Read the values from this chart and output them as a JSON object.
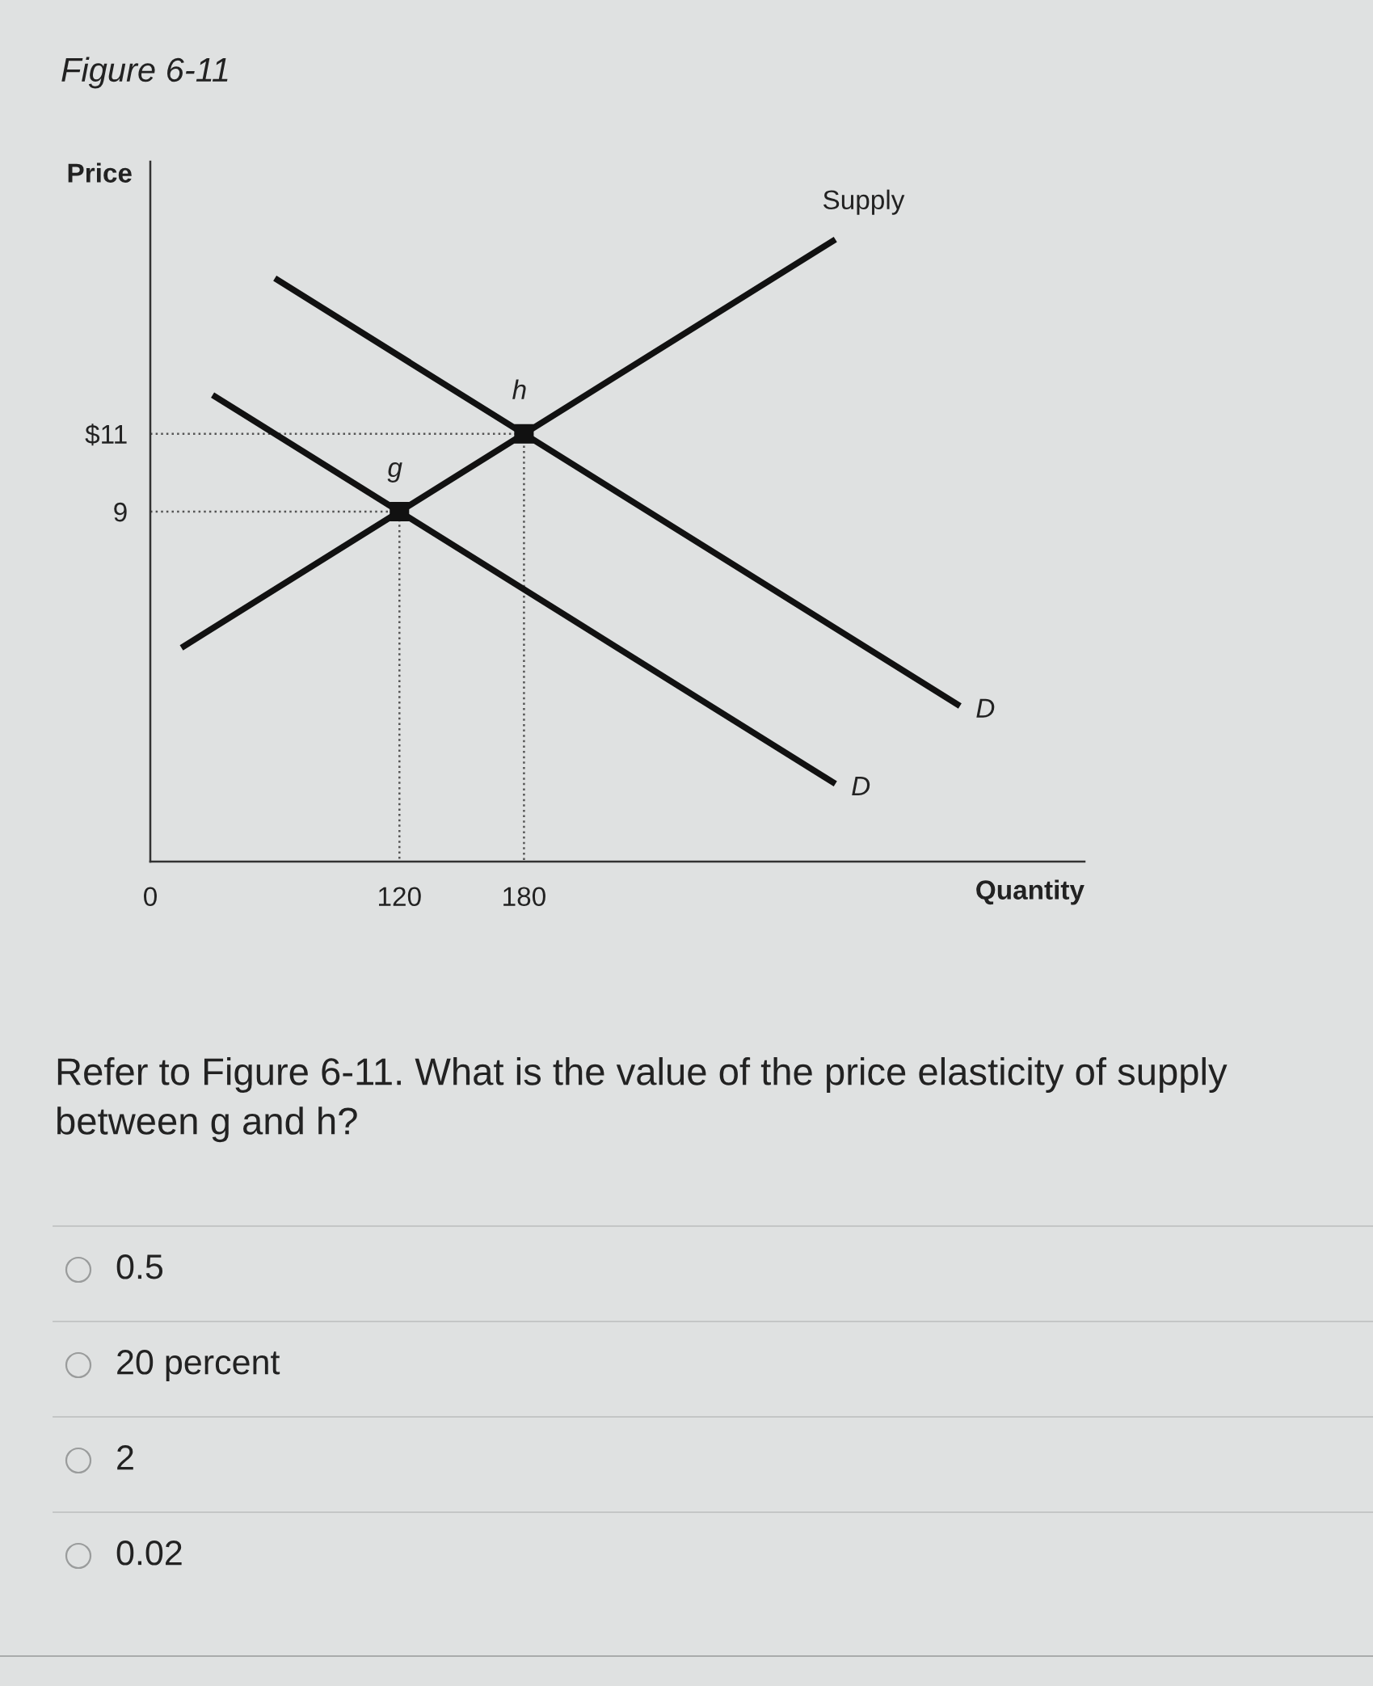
{
  "chart_data": {
    "type": "line",
    "title": "Figure 6-11",
    "xlabel": "Quantity",
    "ylabel": "Price",
    "xlim": [
      0,
      450
    ],
    "ylim": [
      0,
      18
    ],
    "xticks": [
      0,
      120,
      180
    ],
    "yticks": [
      9,
      {
        "value": 11,
        "label": "$11"
      }
    ],
    "line_style": "solid",
    "marker": "none",
    "series": [
      {
        "name": "Supply",
        "color": "#111111",
        "x": [
          15,
          120,
          180,
          330
        ],
        "values": [
          5.5,
          9,
          11,
          16
        ]
      },
      {
        "name": "D",
        "color": "#111111",
        "x": [
          30,
          120,
          330
        ],
        "values": [
          12,
          9,
          2
        ]
      },
      {
        "name": "D",
        "color": "#111111",
        "x": [
          60,
          180,
          390
        ],
        "values": [
          15,
          11,
          4
        ]
      },
      {
        "color": "#555555",
        "line_style": "dotted",
        "x": [
          0,
          120,
          120
        ],
        "values": [
          9,
          9,
          0
        ]
      },
      {
        "color": "#555555",
        "line_style": "dotted",
        "x": [
          0,
          180,
          180
        ],
        "values": [
          11,
          11,
          0
        ]
      },
      {
        "type": "scatter",
        "color": "#111111",
        "marker": "square",
        "x": [
          120,
          180
        ],
        "values": [
          9,
          11
        ]
      }
    ],
    "annotations": [
      {
        "text": "g",
        "x": 120,
        "y": 9
      },
      {
        "text": "h",
        "x": 180,
        "y": 11
      },
      "Refer to Figure 6-11. What is the value of the price elasticity of supply between g and h?",
      "0.5",
      "20 percent",
      "2",
      "0.02"
    ]
  }
}
